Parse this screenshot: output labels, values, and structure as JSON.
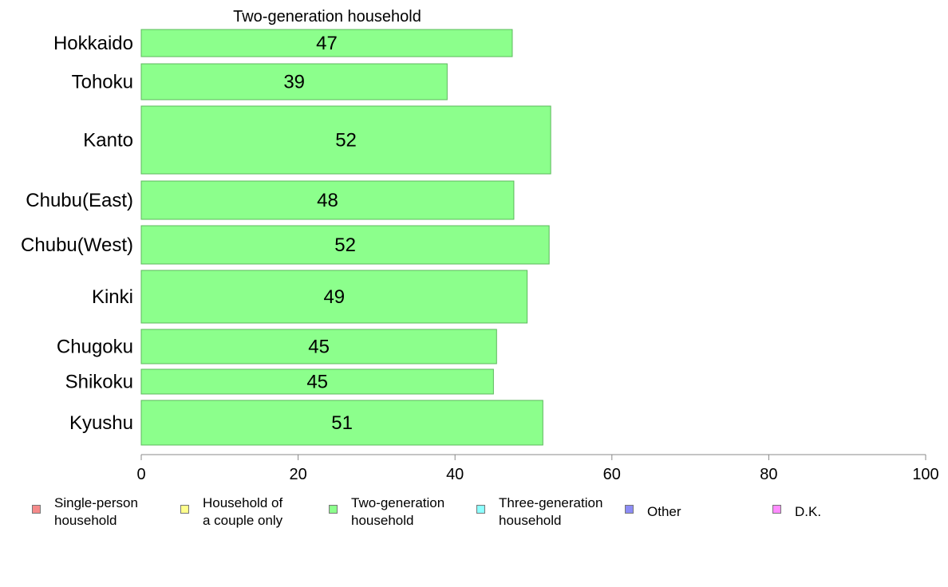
{
  "chart_data": {
    "type": "bar",
    "orientation": "horizontal",
    "title": "Two-generation household",
    "categories": [
      "Hokkaido",
      "Tohoku",
      "Kanto",
      "Chubu(East)",
      "Chubu(West)",
      "Kinki",
      "Chugoku",
      "Shikoku",
      "Kyushu"
    ],
    "values": [
      47.3,
      39.0,
      52.2,
      47.5,
      52.0,
      49.2,
      45.3,
      44.9,
      51.2
    ],
    "value_labels": [
      "47",
      "39",
      "52",
      "48",
      "52",
      "49",
      "45",
      "45",
      "51"
    ],
    "xlim": [
      0,
      100
    ],
    "x_ticks": [
      "0",
      "20",
      "40",
      "60",
      "80",
      "100"
    ],
    "xlabel": "",
    "ylabel": "",
    "bar_color": "#8cff8c",
    "bar_border_color": "#5cb85c",
    "legend_placement": "bottom",
    "legend": [
      {
        "label": "Single-person\nhousehold",
        "color": "#f58a8a"
      },
      {
        "label": "Household of\na couple only",
        "color": "#ffff8c"
      },
      {
        "label": "Two-generation\nhousehold",
        "color": "#8cff8c"
      },
      {
        "label": "Three-generation\nhousehold",
        "color": "#8cffff"
      },
      {
        "label": "Other",
        "color": "#8c8cf5"
      },
      {
        "label": "D.K.",
        "color": "#ff8cff"
      }
    ]
  }
}
